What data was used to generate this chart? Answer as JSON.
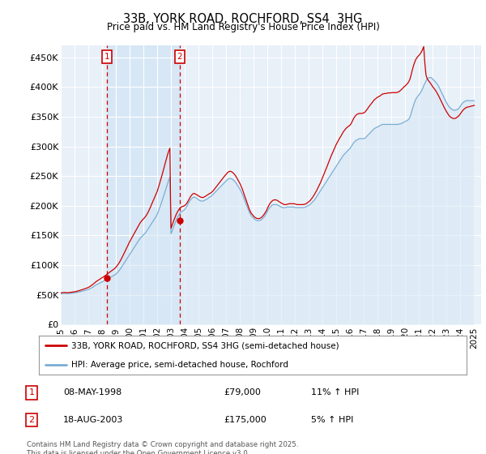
{
  "title": "33B, YORK ROAD, ROCHFORD, SS4  3HG",
  "subtitle": "Price paid vs. HM Land Registry's House Price Index (HPI)",
  "ylabel_ticks": [
    "£0",
    "£50K",
    "£100K",
    "£150K",
    "£200K",
    "£250K",
    "£300K",
    "£350K",
    "£400K",
    "£450K"
  ],
  "ytick_values": [
    0,
    50000,
    100000,
    150000,
    200000,
    250000,
    300000,
    350000,
    400000,
    450000
  ],
  "ylim": [
    0,
    470000
  ],
  "xlim_start": 1995.0,
  "xlim_end": 2025.5,
  "xtick_years": [
    1995,
    1996,
    1997,
    1998,
    1999,
    2000,
    2001,
    2002,
    2003,
    2004,
    2005,
    2006,
    2007,
    2008,
    2009,
    2010,
    2011,
    2012,
    2013,
    2014,
    2015,
    2016,
    2017,
    2018,
    2019,
    2020,
    2021,
    2022,
    2023,
    2024,
    2025
  ],
  "red_line_color": "#cc0000",
  "blue_line_color": "#7aadd4",
  "blue_fill_color": "#d8e8f5",
  "background_color": "#e8f0f8",
  "grid_color": "#ffffff",
  "sale1": {
    "label": "1",
    "date": "08-MAY-1998",
    "price": 79000,
    "pct": "11%",
    "x": 1998.36
  },
  "sale2": {
    "label": "2",
    "date": "18-AUG-2003",
    "price": 175000,
    "pct": "5%",
    "x": 2003.63
  },
  "legend_red_label": "33B, YORK ROAD, ROCHFORD, SS4 3HG (semi-detached house)",
  "legend_blue_label": "HPI: Average price, semi-detached house, Rochford",
  "footnote": "Contains HM Land Registry data © Crown copyright and database right 2025.\nThis data is licensed under the Open Government Licence v3.0.",
  "sale1_dot_y": 79000,
  "sale2_dot_y": 175000,
  "hpi_data": {
    "years": [
      1995.0,
      1995.083,
      1995.167,
      1995.25,
      1995.333,
      1995.417,
      1995.5,
      1995.583,
      1995.667,
      1995.75,
      1995.833,
      1995.917,
      1996.0,
      1996.083,
      1996.167,
      1996.25,
      1996.333,
      1996.417,
      1996.5,
      1996.583,
      1996.667,
      1996.75,
      1996.833,
      1996.917,
      1997.0,
      1997.083,
      1997.167,
      1997.25,
      1997.333,
      1997.417,
      1997.5,
      1997.583,
      1997.667,
      1997.75,
      1997.833,
      1997.917,
      1998.0,
      1998.083,
      1998.167,
      1998.25,
      1998.333,
      1998.417,
      1998.5,
      1998.583,
      1998.667,
      1998.75,
      1998.833,
      1998.917,
      1999.0,
      1999.083,
      1999.167,
      1999.25,
      1999.333,
      1999.417,
      1999.5,
      1999.583,
      1999.667,
      1999.75,
      1999.833,
      1999.917,
      2000.0,
      2000.083,
      2000.167,
      2000.25,
      2000.333,
      2000.417,
      2000.5,
      2000.583,
      2000.667,
      2000.75,
      2000.833,
      2000.917,
      2001.0,
      2001.083,
      2001.167,
      2001.25,
      2001.333,
      2001.417,
      2001.5,
      2001.583,
      2001.667,
      2001.75,
      2001.833,
      2001.917,
      2002.0,
      2002.083,
      2002.167,
      2002.25,
      2002.333,
      2002.417,
      2002.5,
      2002.583,
      2002.667,
      2002.75,
      2002.833,
      2002.917,
      2003.0,
      2003.083,
      2003.167,
      2003.25,
      2003.333,
      2003.417,
      2003.5,
      2003.583,
      2003.667,
      2003.75,
      2003.833,
      2003.917,
      2004.0,
      2004.083,
      2004.167,
      2004.25,
      2004.333,
      2004.417,
      2004.5,
      2004.583,
      2004.667,
      2004.75,
      2004.833,
      2004.917,
      2005.0,
      2005.083,
      2005.167,
      2005.25,
      2005.333,
      2005.417,
      2005.5,
      2005.583,
      2005.667,
      2005.75,
      2005.833,
      2005.917,
      2006.0,
      2006.083,
      2006.167,
      2006.25,
      2006.333,
      2006.417,
      2006.5,
      2006.583,
      2006.667,
      2006.75,
      2006.833,
      2006.917,
      2007.0,
      2007.083,
      2007.167,
      2007.25,
      2007.333,
      2007.417,
      2007.5,
      2007.583,
      2007.667,
      2007.75,
      2007.833,
      2007.917,
      2008.0,
      2008.083,
      2008.167,
      2008.25,
      2008.333,
      2008.417,
      2008.5,
      2008.583,
      2008.667,
      2008.75,
      2008.833,
      2008.917,
      2009.0,
      2009.083,
      2009.167,
      2009.25,
      2009.333,
      2009.417,
      2009.5,
      2009.583,
      2009.667,
      2009.75,
      2009.833,
      2009.917,
      2010.0,
      2010.083,
      2010.167,
      2010.25,
      2010.333,
      2010.417,
      2010.5,
      2010.583,
      2010.667,
      2010.75,
      2010.833,
      2010.917,
      2011.0,
      2011.083,
      2011.167,
      2011.25,
      2011.333,
      2011.417,
      2011.5,
      2011.583,
      2011.667,
      2011.75,
      2011.833,
      2011.917,
      2012.0,
      2012.083,
      2012.167,
      2012.25,
      2012.333,
      2012.417,
      2012.5,
      2012.583,
      2012.667,
      2012.75,
      2012.833,
      2012.917,
      2013.0,
      2013.083,
      2013.167,
      2013.25,
      2013.333,
      2013.417,
      2013.5,
      2013.583,
      2013.667,
      2013.75,
      2013.833,
      2013.917,
      2014.0,
      2014.083,
      2014.167,
      2014.25,
      2014.333,
      2014.417,
      2014.5,
      2014.583,
      2014.667,
      2014.75,
      2014.833,
      2014.917,
      2015.0,
      2015.083,
      2015.167,
      2015.25,
      2015.333,
      2015.417,
      2015.5,
      2015.583,
      2015.667,
      2015.75,
      2015.833,
      2015.917,
      2016.0,
      2016.083,
      2016.167,
      2016.25,
      2016.333,
      2016.417,
      2016.5,
      2016.583,
      2016.667,
      2016.75,
      2016.833,
      2016.917,
      2017.0,
      2017.083,
      2017.167,
      2017.25,
      2017.333,
      2017.417,
      2017.5,
      2017.583,
      2017.667,
      2017.75,
      2017.833,
      2017.917,
      2018.0,
      2018.083,
      2018.167,
      2018.25,
      2018.333,
      2018.417,
      2018.5,
      2018.583,
      2018.667,
      2018.75,
      2018.833,
      2018.917,
      2019.0,
      2019.083,
      2019.167,
      2019.25,
      2019.333,
      2019.417,
      2019.5,
      2019.583,
      2019.667,
      2019.75,
      2019.833,
      2019.917,
      2020.0,
      2020.083,
      2020.167,
      2020.25,
      2020.333,
      2020.417,
      2020.5,
      2020.583,
      2020.667,
      2020.75,
      2020.833,
      2020.917,
      2021.0,
      2021.083,
      2021.167,
      2021.25,
      2021.333,
      2021.417,
      2021.5,
      2021.583,
      2021.667,
      2021.75,
      2021.833,
      2021.917,
      2022.0,
      2022.083,
      2022.167,
      2022.25,
      2022.333,
      2022.417,
      2022.5,
      2022.583,
      2022.667,
      2022.75,
      2022.833,
      2022.917,
      2023.0,
      2023.083,
      2023.167,
      2023.25,
      2023.333,
      2023.417,
      2023.5,
      2023.583,
      2023.667,
      2023.75,
      2023.833,
      2023.917,
      2024.0,
      2024.083,
      2024.167,
      2024.25,
      2024.333,
      2024.417,
      2024.5,
      2024.583,
      2024.667,
      2024.75,
      2024.833,
      2024.917,
      2025.0
    ],
    "hpi_values": [
      52000,
      52200,
      52300,
      52500,
      52400,
      52300,
      52200,
      52300,
      52500,
      52800,
      53000,
      53200,
      53500,
      53800,
      54200,
      54600,
      55000,
      55500,
      56000,
      56500,
      57000,
      57500,
      58000,
      58500,
      59000,
      60000,
      61000,
      62000,
      63000,
      64500,
      66000,
      67000,
      68000,
      69000,
      70000,
      71000,
      72000,
      73000,
      74000,
      75000,
      76000,
      77000,
      78500,
      79500,
      80500,
      81500,
      82500,
      83500,
      85000,
      87000,
      89000,
      91500,
      94000,
      97000,
      100000,
      103000,
      106000,
      109000,
      112000,
      115000,
      118000,
      121000,
      124000,
      127000,
      130000,
      133000,
      136000,
      139000,
      142000,
      145000,
      147000,
      149000,
      151000,
      153000,
      155000,
      158000,
      161000,
      164000,
      167000,
      170000,
      173000,
      176000,
      179000,
      182000,
      186000,
      191000,
      196000,
      201000,
      207000,
      213000,
      219000,
      225000,
      231000,
      237000,
      243000,
      248000,
      153000,
      158000,
      163000,
      168000,
      173000,
      178000,
      182000,
      185000,
      188000,
      190000,
      191000,
      192000,
      194000,
      197000,
      200000,
      204000,
      207000,
      210000,
      212000,
      214000,
      215000,
      214000,
      213000,
      212000,
      210000,
      209000,
      208000,
      208000,
      208000,
      209000,
      210000,
      211000,
      212000,
      214000,
      215000,
      216000,
      218000,
      220000,
      222000,
      224000,
      226000,
      228000,
      230000,
      232000,
      234000,
      236000,
      238000,
      240000,
      242000,
      244000,
      245000,
      246000,
      246000,
      245000,
      244000,
      242000,
      240000,
      237000,
      234000,
      231000,
      228000,
      224000,
      220000,
      215000,
      210000,
      205000,
      200000,
      195000,
      190000,
      186000,
      183000,
      181000,
      179000,
      177000,
      176000,
      175000,
      175000,
      175000,
      176000,
      177000,
      179000,
      181000,
      184000,
      187000,
      191000,
      194000,
      197000,
      199000,
      201000,
      202000,
      202000,
      202000,
      202000,
      201000,
      200000,
      199000,
      198000,
      197000,
      197000,
      197000,
      197000,
      198000,
      198000,
      198000,
      198000,
      198000,
      198000,
      198000,
      197000,
      197000,
      197000,
      197000,
      197000,
      197000,
      197000,
      197000,
      197000,
      198000,
      199000,
      200000,
      201000,
      202000,
      204000,
      206000,
      208000,
      210000,
      213000,
      216000,
      219000,
      222000,
      225000,
      228000,
      231000,
      234000,
      237000,
      240000,
      243000,
      246000,
      249000,
      252000,
      255000,
      258000,
      261000,
      264000,
      267000,
      270000,
      273000,
      276000,
      279000,
      282000,
      285000,
      287000,
      289000,
      291000,
      293000,
      295000,
      297000,
      300000,
      303000,
      306000,
      308000,
      310000,
      311000,
      312000,
      313000,
      313000,
      313000,
      313000,
      313000,
      314000,
      316000,
      318000,
      320000,
      322000,
      324000,
      326000,
      328000,
      330000,
      331000,
      332000,
      333000,
      334000,
      335000,
      336000,
      337000,
      337000,
      337000,
      337000,
      337000,
      337000,
      337000,
      337000,
      337000,
      337000,
      337000,
      337000,
      337000,
      337000,
      337000,
      338000,
      338000,
      339000,
      340000,
      341000,
      342000,
      343000,
      344000,
      346000,
      349000,
      355000,
      362000,
      368000,
      374000,
      379000,
      382000,
      385000,
      387000,
      390000,
      393000,
      397000,
      402000,
      406000,
      410000,
      413000,
      415000,
      416000,
      416000,
      415000,
      413000,
      411000,
      409000,
      407000,
      404000,
      401000,
      397000,
      393000,
      389000,
      385000,
      381000,
      377000,
      373000,
      370000,
      367000,
      365000,
      363000,
      362000,
      361000,
      361000,
      361000,
      362000,
      363000,
      365000,
      368000,
      371000,
      373000,
      375000,
      376000,
      377000,
      377000,
      377000,
      377000,
      377000,
      377000,
      377000,
      377000
    ],
    "red_values": [
      53500,
      53700,
      53900,
      54100,
      54000,
      53900,
      53800,
      53900,
      54100,
      54400,
      54700,
      55000,
      55300,
      55600,
      56100,
      56600,
      57200,
      57800,
      58400,
      59000,
      59700,
      60400,
      61100,
      61800,
      62500,
      63700,
      65000,
      66400,
      67800,
      69500,
      71300,
      72700,
      74000,
      75200,
      76500,
      77800,
      79000,
      80200,
      81500,
      82800,
      84200,
      85700,
      87400,
      88800,
      90200,
      91600,
      93000,
      94500,
      96500,
      99000,
      101500,
      104500,
      108000,
      111500,
      115500,
      119500,
      123500,
      127500,
      131500,
      135500,
      139500,
      143000,
      146500,
      150000,
      153500,
      157000,
      160500,
      164000,
      167500,
      171000,
      173500,
      176000,
      178000,
      180000,
      182500,
      185500,
      189000,
      193000,
      197500,
      202000,
      206500,
      211000,
      215500,
      220000,
      224500,
      230500,
      237000,
      243500,
      250500,
      257500,
      265000,
      272000,
      279000,
      286000,
      292000,
      297000,
      162000,
      167500,
      173000,
      178000,
      183000,
      187500,
      191000,
      194000,
      196500,
      198000,
      199000,
      199500,
      200500,
      202500,
      205000,
      208500,
      212000,
      215500,
      218000,
      220000,
      221000,
      220000,
      219000,
      218000,
      216500,
      215500,
      214500,
      214000,
      214000,
      215000,
      216000,
      217500,
      218500,
      220000,
      221000,
      222000,
      224000,
      226000,
      228500,
      231000,
      233500,
      236000,
      238500,
      241000,
      243500,
      246000,
      248500,
      251000,
      253000,
      255500,
      257000,
      258000,
      258000,
      257000,
      255500,
      253500,
      251000,
      248000,
      244500,
      241000,
      237500,
      233000,
      228500,
      223000,
      217500,
      212000,
      206000,
      200500,
      195000,
      190500,
      187000,
      185000,
      182500,
      180500,
      179500,
      178500,
      178500,
      178500,
      179500,
      181000,
      183000,
      185500,
      188500,
      191500,
      196000,
      200000,
      203500,
      206000,
      208000,
      209500,
      210000,
      210000,
      209500,
      208500,
      207000,
      206000,
      204500,
      203500,
      202500,
      202000,
      202000,
      202500,
      203000,
      203500,
      203500,
      203500,
      203500,
      203500,
      203000,
      202500,
      202000,
      202000,
      202000,
      202000,
      202000,
      202000,
      202500,
      203000,
      204000,
      205500,
      207000,
      208500,
      211000,
      213500,
      216500,
      219500,
      223000,
      226500,
      230500,
      234500,
      238500,
      243000,
      248000,
      252500,
      257500,
      262000,
      267000,
      272000,
      277000,
      282000,
      286500,
      291000,
      295500,
      300000,
      304000,
      307500,
      311000,
      314500,
      317500,
      321000,
      324500,
      327000,
      329500,
      331500,
      333000,
      334500,
      336000,
      339000,
      343000,
      347000,
      350000,
      352500,
      354000,
      355000,
      355500,
      355500,
      355500,
      356000,
      356500,
      358000,
      360500,
      363000,
      366000,
      368500,
      371000,
      373500,
      376000,
      378500,
      380000,
      381500,
      383000,
      384000,
      385000,
      386500,
      388000,
      388500,
      389000,
      389000,
      389500,
      390000,
      390000,
      390000,
      390500,
      390500,
      390500,
      390500,
      390500,
      391000,
      391500,
      393000,
      394500,
      396500,
      398500,
      400500,
      402000,
      404000,
      406000,
      409000,
      413000,
      420000,
      428000,
      435000,
      441000,
      446000,
      449000,
      451500,
      453500,
      456000,
      459000,
      463000,
      468000,
      440000,
      420000,
      414000,
      411000,
      408500,
      406000,
      403000,
      400000,
      397500,
      395000,
      392000,
      388500,
      385000,
      381000,
      377000,
      373000,
      369000,
      365000,
      361500,
      358000,
      355000,
      352000,
      350000,
      348500,
      347500,
      347000,
      347000,
      347500,
      349000,
      350500,
      352500,
      355000,
      358000,
      360500,
      362500,
      364000,
      365500,
      366000,
      366500,
      367000,
      367500,
      368000,
      368500,
      369000
    ]
  }
}
